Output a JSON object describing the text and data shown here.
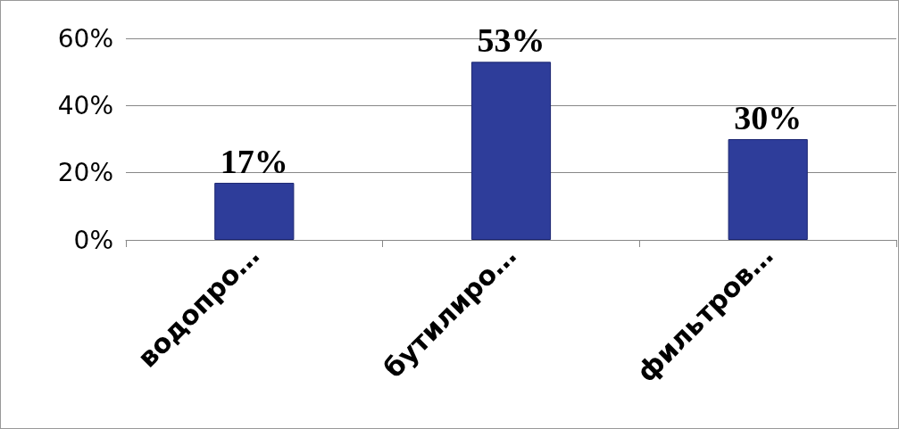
{
  "chart_data": {
    "type": "bar",
    "categories": [
      "водопро…",
      "бутилиро…",
      "фильтров…"
    ],
    "values": [
      17,
      53,
      30
    ],
    "color": "#2e3d9a",
    "value_labels": [
      "17%",
      "53%",
      "30%"
    ],
    "ylim": [
      0,
      60
    ],
    "yticks": [
      {
        "value": 0,
        "label": "0%"
      },
      {
        "value": 20,
        "label": "20%"
      },
      {
        "value": 40,
        "label": "40%"
      },
      {
        "value": 60,
        "label": "60%"
      }
    ],
    "grid": "y"
  }
}
